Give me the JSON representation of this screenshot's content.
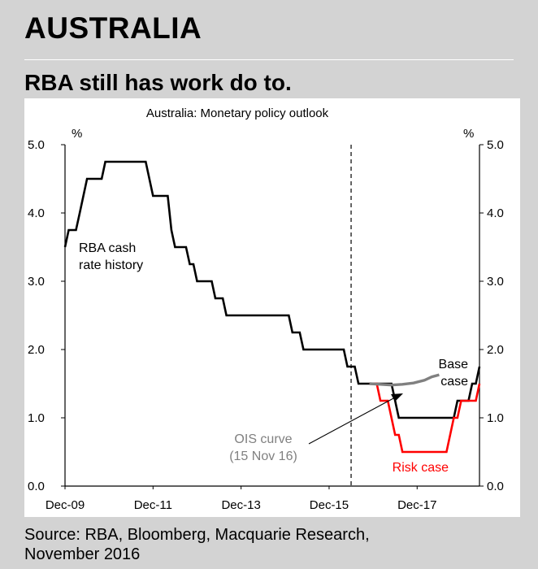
{
  "page": {
    "heading": "AUSTRALIA",
    "subheading": "RBA still has work do to.",
    "source_line1": "Source: RBA, Bloomberg, Macquarie Research,",
    "source_line2": "November 2016"
  },
  "chart_data": {
    "type": "line",
    "title": "Australia: Monetary policy outlook",
    "ylabel_left": "%",
    "ylabel_right": "%",
    "ylim": [
      0,
      5
    ],
    "yticks": [
      "0.0",
      "1.0",
      "2.0",
      "3.0",
      "4.0",
      "5.0"
    ],
    "xlim": [
      "2009-12",
      "2019-05"
    ],
    "xticks": [
      {
        "label": "Dec-09",
        "date": "2009-12"
      },
      {
        "label": "Dec-11",
        "date": "2011-12"
      },
      {
        "label": "Dec-13",
        "date": "2013-12"
      },
      {
        "label": "Dec-15",
        "date": "2015-12"
      },
      {
        "label": "Dec-17",
        "date": "2017-12"
      }
    ],
    "forecast_start": "2016-06",
    "grid": false,
    "series": [
      {
        "name": "RBA cash rate history",
        "color": "#000000",
        "style": "solid",
        "points": [
          [
            "2009-12",
            3.5
          ],
          [
            "2010-01",
            3.75
          ],
          [
            "2010-03",
            3.75
          ],
          [
            "2010-04",
            4.0
          ],
          [
            "2010-05",
            4.25
          ],
          [
            "2010-06",
            4.5
          ],
          [
            "2010-10",
            4.5
          ],
          [
            "2010-11",
            4.75
          ],
          [
            "2011-10",
            4.75
          ],
          [
            "2011-11",
            4.5
          ],
          [
            "2011-12",
            4.25
          ],
          [
            "2012-04",
            4.25
          ],
          [
            "2012-05",
            3.75
          ],
          [
            "2012-06",
            3.5
          ],
          [
            "2012-09",
            3.5
          ],
          [
            "2012-10",
            3.25
          ],
          [
            "2012-11",
            3.25
          ],
          [
            "2012-12",
            3.0
          ],
          [
            "2013-04",
            3.0
          ],
          [
            "2013-05",
            2.75
          ],
          [
            "2013-07",
            2.75
          ],
          [
            "2013-08",
            2.5
          ],
          [
            "2015-01",
            2.5
          ],
          [
            "2015-02",
            2.25
          ],
          [
            "2015-04",
            2.25
          ],
          [
            "2015-05",
            2.0
          ],
          [
            "2016-04",
            2.0
          ],
          [
            "2016-05",
            1.75
          ],
          [
            "2016-07",
            1.75
          ],
          [
            "2016-08",
            1.5
          ],
          [
            "2016-11",
            1.5
          ]
        ]
      },
      {
        "name": "Base case",
        "color": "#000000",
        "style": "solid",
        "points": [
          [
            "2016-11",
            1.5
          ],
          [
            "2017-05",
            1.5
          ],
          [
            "2017-06",
            1.25
          ],
          [
            "2017-07",
            1.0
          ],
          [
            "2018-10",
            1.0
          ],
          [
            "2018-11",
            1.25
          ],
          [
            "2019-02",
            1.25
          ],
          [
            "2019-03",
            1.5
          ],
          [
            "2019-04",
            1.5
          ],
          [
            "2019-05",
            1.75
          ]
        ]
      },
      {
        "name": "Risk case",
        "color": "#ff0000",
        "style": "solid",
        "points": [
          [
            "2016-11",
            1.5
          ],
          [
            "2017-01",
            1.5
          ],
          [
            "2017-02",
            1.25
          ],
          [
            "2017-04",
            1.25
          ],
          [
            "2017-05",
            1.0
          ],
          [
            "2017-06",
            0.75
          ],
          [
            "2017-07",
            0.75
          ],
          [
            "2017-08",
            0.5
          ],
          [
            "2018-08",
            0.5
          ],
          [
            "2018-09",
            0.75
          ],
          [
            "2018-10",
            1.0
          ],
          [
            "2018-11",
            1.0
          ],
          [
            "2018-12",
            1.25
          ],
          [
            "2019-04",
            1.25
          ],
          [
            "2019-05",
            1.5
          ]
        ]
      },
      {
        "name": "OIS curve (15 Nov 16)",
        "color": "#808080",
        "style": "solid",
        "points": [
          [
            "2016-11",
            1.5
          ],
          [
            "2017-02",
            1.49
          ],
          [
            "2017-05",
            1.48
          ],
          [
            "2017-08",
            1.49
          ],
          [
            "2017-11",
            1.51
          ],
          [
            "2018-02",
            1.55
          ],
          [
            "2018-04",
            1.6
          ],
          [
            "2018-06",
            1.63
          ]
        ]
      }
    ],
    "annotations": {
      "rba_history_line1": "RBA cash",
      "rba_history_line2": "rate history",
      "base_line1": "Base",
      "base_line2": "case",
      "ois_line1": "OIS curve",
      "ois_line2": "(15 Nov 16)",
      "risk": "Risk case"
    }
  }
}
